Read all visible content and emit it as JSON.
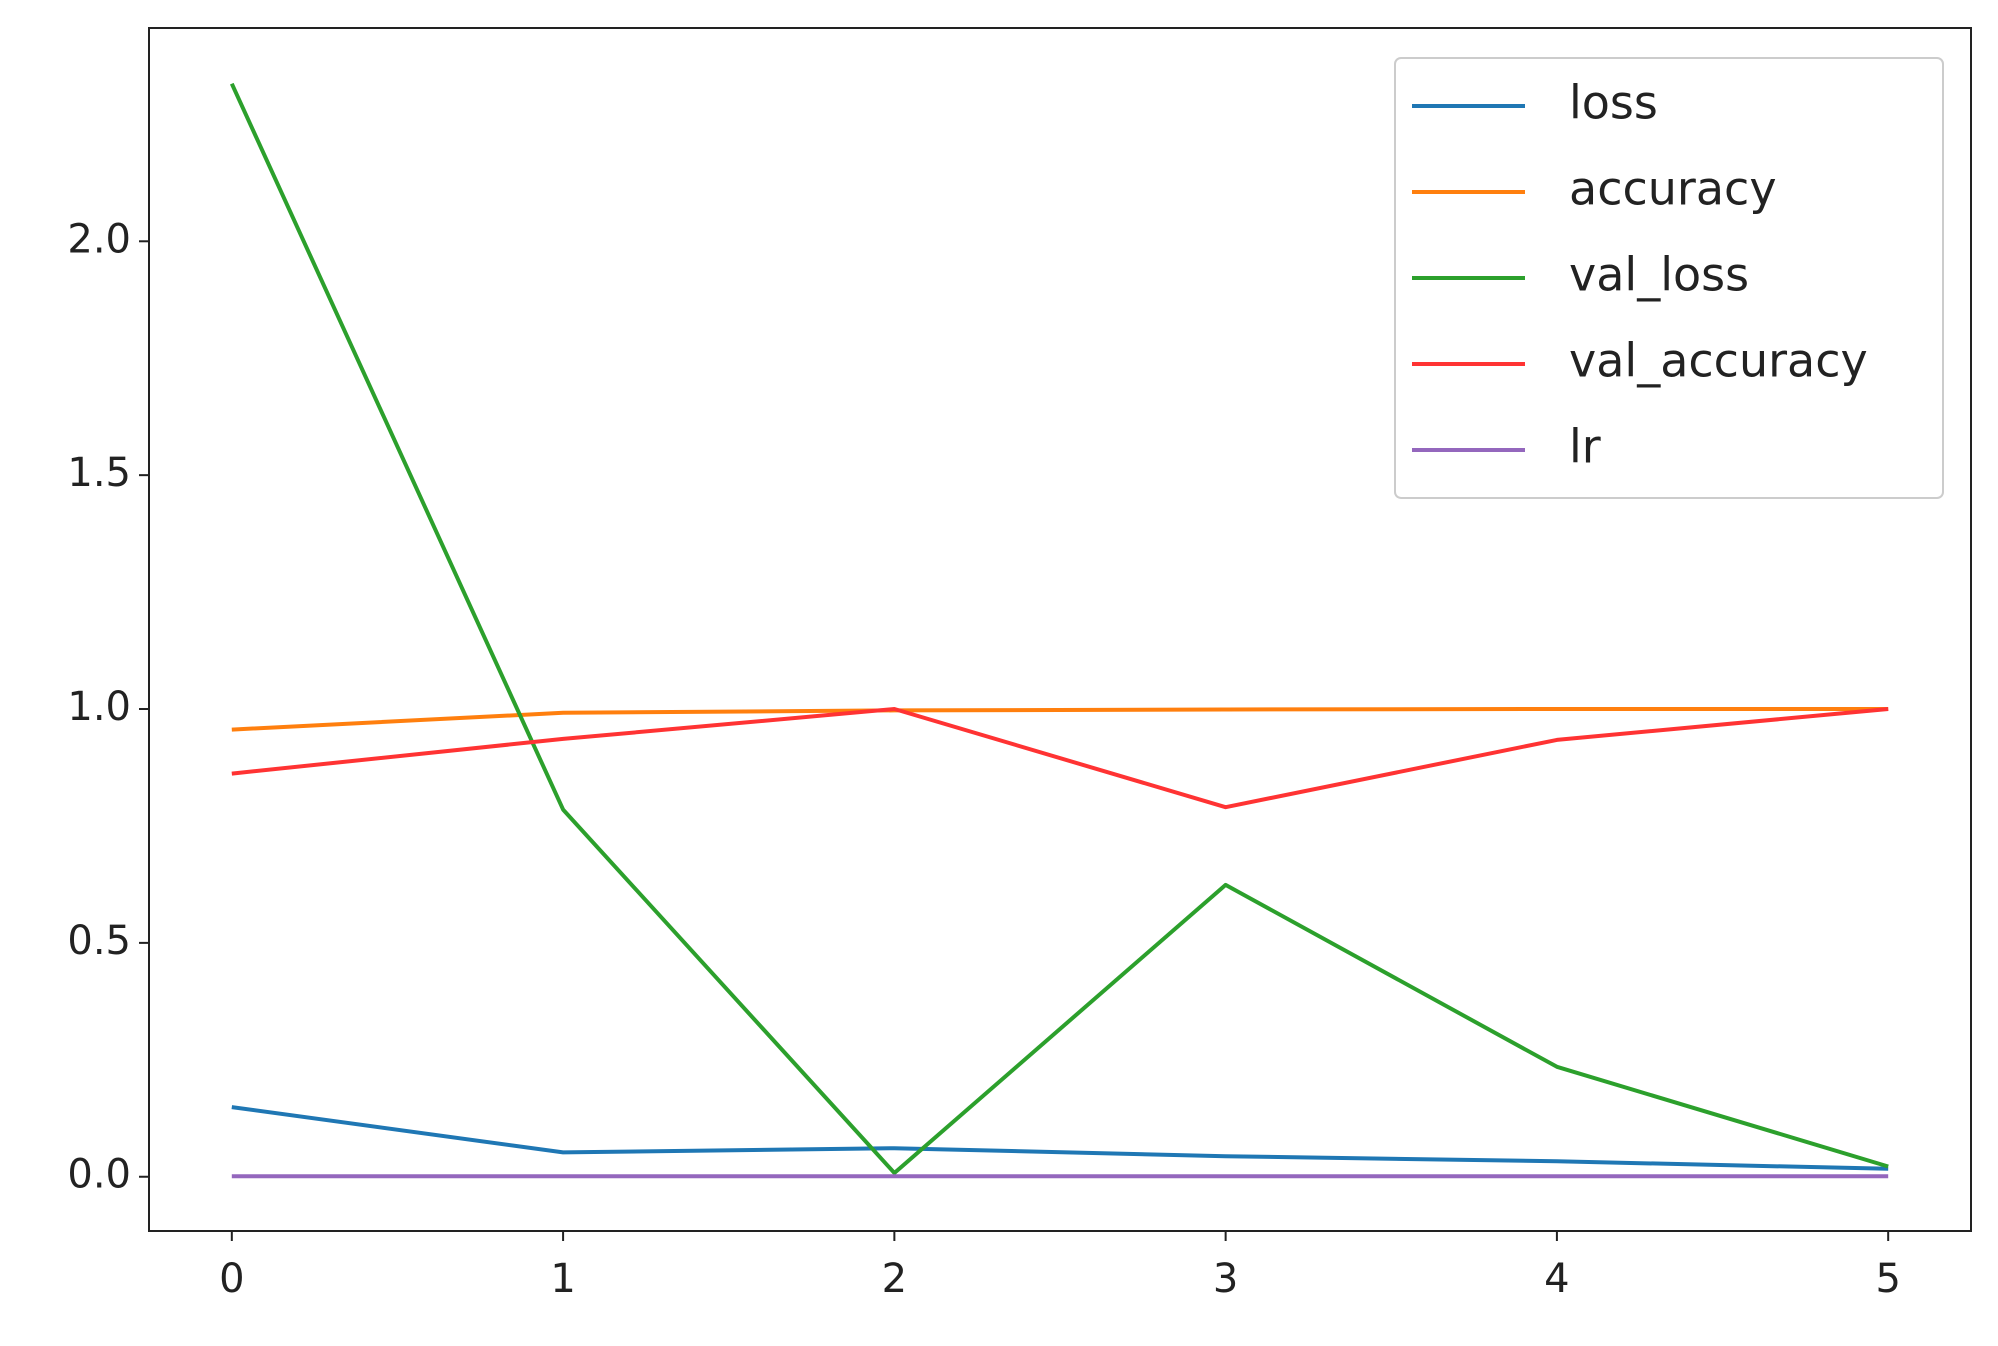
{
  "chart_data": {
    "type": "line",
    "x": [
      0,
      1,
      2,
      3,
      4,
      5
    ],
    "series": [
      {
        "name": "loss",
        "color": "#1f77b4",
        "values": [
          0.149,
          0.052,
          0.061,
          0.044,
          0.033,
          0.017
        ]
      },
      {
        "name": "accuracy",
        "color": "#ff7f0e",
        "values": [
          0.956,
          0.992,
          0.997,
          0.999,
          1.0,
          1.0
        ]
      },
      {
        "name": "val_loss",
        "color": "#2ca02c",
        "values": [
          2.337,
          0.785,
          0.008,
          0.624,
          0.235,
          0.022
        ]
      },
      {
        "name": "val_accuracy",
        "color": "#ff3333",
        "values": [
          0.862,
          0.936,
          1.0,
          0.79,
          0.934,
          1.0
        ]
      },
      {
        "name": "lr",
        "color": "#9467bd",
        "values": [
          0.001,
          0.001,
          0.001,
          0.001,
          0.001,
          0.001
        ]
      }
    ],
    "xlim": [
      -0.25,
      5.25
    ],
    "xticks": [
      0,
      1,
      2,
      3,
      4,
      5
    ],
    "ylim": [
      -0.116,
      2.456
    ],
    "yticks": [
      {
        "value": 0,
        "label": "0.0"
      },
      {
        "value": 0.5,
        "label": "0.5"
      },
      {
        "value": 1,
        "label": "1.0"
      },
      {
        "value": 1.5,
        "label": "1.5"
      },
      {
        "value": 2,
        "label": "2.0"
      }
    ],
    "grid": false,
    "legend": "upper right"
  }
}
